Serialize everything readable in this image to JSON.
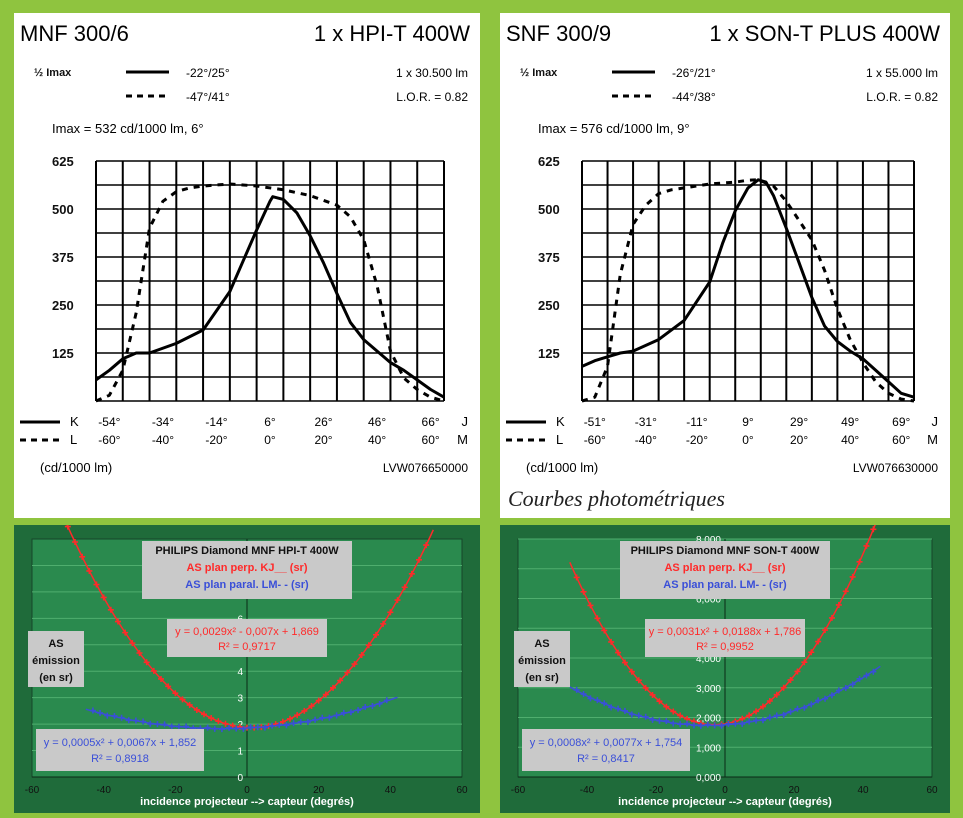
{
  "photometric": [
    {
      "model": "MNF 300/6",
      "lamp": "1 x HPI-T 400W",
      "half_imax_label": "½ Imax",
      "solid_angles": "-22°/25°",
      "dashed_angles": "-47°/41°",
      "flux": "1 x 30.500 lm",
      "lor": "L.O.R. = 0.82",
      "imax": "Imax = 532 cd/1000 lm, 6°",
      "y_ticks": [
        "625",
        "500",
        "375",
        "250",
        "125"
      ],
      "k_prefix": "K",
      "l_prefix": "L",
      "k_ticks": [
        "-54°",
        "-34°",
        "-14°",
        "6°",
        "26°",
        "46°",
        "66°"
      ],
      "l_ticks": [
        "-60°",
        "-40°",
        "-20°",
        "0°",
        "20°",
        "40°",
        "60°"
      ],
      "end_top": "J",
      "end_bottom": "M",
      "unit": "(cd/1000 lm)",
      "code": "LVW076650000",
      "chart_data": {
        "type": "line",
        "xlabel": "",
        "ylabel": "(cd/1000 lm)",
        "xlim": [
          -60,
          70
        ],
        "ylim": [
          0,
          625
        ],
        "series": [
          {
            "style": "solid",
            "x": [
              -60,
              -55,
              -50,
              -45,
              -40,
              -30,
              -20,
              -10,
              -5,
              0,
              5,
              6,
              10,
              15,
              20,
              25,
              30,
              35,
              40,
              45,
              50,
              55,
              60,
              65,
              70
            ],
            "y": [
              55,
              80,
              110,
              125,
              125,
              150,
              185,
              285,
              365,
              445,
              520,
              532,
              525,
              490,
              430,
              360,
              280,
              205,
              160,
              130,
              100,
              80,
              55,
              30,
              10
            ]
          },
          {
            "style": "dashed",
            "x": [
              -60,
              -55,
              -50,
              -45,
              -40,
              -35,
              -30,
              -25,
              -20,
              -10,
              0,
              10,
              20,
              30,
              35,
              40,
              45,
              50,
              55,
              60,
              65,
              70
            ],
            "y": [
              0,
              15,
              80,
              230,
              450,
              520,
              545,
              555,
              560,
              565,
              560,
              550,
              535,
              510,
              480,
              420,
              300,
              130,
              60,
              30,
              10,
              0
            ]
          }
        ]
      }
    },
    {
      "model": "SNF 300/9",
      "lamp": "1 x SON-T PLUS 400W",
      "half_imax_label": "½ Imax",
      "solid_angles": "-26°/21°",
      "dashed_angles": "-44°/38°",
      "flux": "1 x 55.000 lm",
      "lor": "L.O.R. = 0.82",
      "imax": "Imax = 576 cd/1000 lm, 9°",
      "y_ticks": [
        "625",
        "500",
        "375",
        "250",
        "125"
      ],
      "k_prefix": "K",
      "l_prefix": "L",
      "k_ticks": [
        "-51°",
        "-31°",
        "-11°",
        "9°",
        "29°",
        "49°",
        "69°"
      ],
      "l_ticks": [
        "-60°",
        "-40°",
        "-20°",
        "0°",
        "20°",
        "40°",
        "60°"
      ],
      "end_top": "J",
      "end_bottom": "M",
      "unit": "(cd/1000 lm)",
      "code": "LVW076630000",
      "chart_data": {
        "type": "line",
        "xlabel": "",
        "ylabel": "(cd/1000 lm)",
        "xlim": [
          -60,
          70
        ],
        "ylim": [
          0,
          625
        ],
        "series": [
          {
            "style": "solid",
            "x": [
              -60,
              -55,
              -50,
              -45,
              -40,
              -30,
              -20,
              -10,
              -5,
              0,
              5,
              9,
              12,
              15,
              20,
              25,
              30,
              35,
              40,
              45,
              50,
              55,
              60,
              65,
              70
            ],
            "y": [
              90,
              105,
              115,
              125,
              130,
              160,
              210,
              310,
              410,
              495,
              555,
              576,
              570,
              535,
              450,
              360,
              270,
              195,
              155,
              130,
              110,
              80,
              50,
              20,
              10
            ]
          },
          {
            "style": "dashed",
            "x": [
              -60,
              -55,
              -50,
              -45,
              -40,
              -35,
              -30,
              -25,
              -20,
              -10,
              0,
              5,
              9,
              15,
              20,
              25,
              30,
              35,
              40,
              45,
              50,
              55,
              60,
              65,
              70
            ],
            "y": [
              0,
              10,
              90,
              330,
              460,
              510,
              540,
              550,
              555,
              565,
              570,
              575,
              576,
              560,
              520,
              470,
              420,
              340,
              240,
              160,
              100,
              50,
              20,
              5,
              0
            ]
          }
        ]
      }
    }
  ],
  "caption": "Courbes photométriques",
  "as_charts": [
    {
      "title": "PHILIPS Diamond MNF HPI-T 400W",
      "legend_perp": "AS plan perp. KJ__ (sr)",
      "legend_paral": "AS plan paral. LM- - (sr)",
      "side_label": [
        "AS",
        "émission",
        "(en sr)"
      ],
      "red_eq": "y = 0,0029x² - 0,007x + 1,869",
      "red_r2": "R² = 0,9717",
      "blue_eq": "y = 0,0005x² + 0,0067x + 1,852",
      "blue_r2": "R² = 0,8918",
      "xlabel": "incidence projecteur --> capteur (degrés)",
      "x_ticks": [
        "-60",
        "-40",
        "-20",
        "0",
        "20",
        "40",
        "60"
      ],
      "y_ticks": [
        "0",
        "1",
        "2",
        "3",
        "4",
        "5",
        "6",
        "7",
        "8"
      ],
      "chart_data": {
        "type": "scatter",
        "xlim": [
          -60,
          60
        ],
        "ylim": [
          0,
          9
        ],
        "series": [
          {
            "name": "AS plan perp. KJ__ (sr)",
            "color": "#ff2a2a",
            "fit": [
              0.0029,
              -0.007,
              1.869
            ],
            "xrange": [
              -50,
              50
            ]
          },
          {
            "name": "AS plan paral. LM- - (sr)",
            "color": "#3a4fd8",
            "fit": [
              0.0005,
              0.0067,
              1.852
            ],
            "xrange": [
              -43,
              40
            ]
          }
        ]
      }
    },
    {
      "title": "PHILIPS Diamond MNF SON-T 400W",
      "legend_perp": "AS plan perp. KJ__ (sr)",
      "legend_paral": "AS plan paral. LM- - (sr)",
      "side_label": [
        "AS",
        "émission",
        "(en sr)"
      ],
      "red_eq": "y = 0,0031x² + 0,0188x + 1,786",
      "red_r2": "R² = 0,9952",
      "blue_eq": "y = 0,0008x² + 0,0077x + 1,754",
      "blue_r2": "R² = 0,8417",
      "xlabel": "incidence projecteur --> capteur (degrés)",
      "x_ticks": [
        "-60",
        "-40",
        "-20",
        "0",
        "20",
        "40",
        "60"
      ],
      "y_ticks": [
        "0,000",
        "1,000",
        "2,000",
        "3,000",
        "4,000",
        "5,000",
        "6,000",
        "7,000",
        "8,000"
      ],
      "chart_data": {
        "type": "scatter",
        "xlim": [
          -60,
          60
        ],
        "ylim": [
          0,
          8
        ],
        "series": [
          {
            "name": "AS plan perp. KJ__ (sr)",
            "color": "#ff2a2a",
            "fit": [
              0.0031,
              0.0188,
              1.786
            ],
            "xrange": [
              -43,
              43
            ]
          },
          {
            "name": "AS plan paral. LM- - (sr)",
            "color": "#3a4fd8",
            "fit": [
              0.0008,
              0.0077,
              1.754
            ],
            "xrange": [
              -43,
              43
            ]
          }
        ]
      }
    }
  ]
}
